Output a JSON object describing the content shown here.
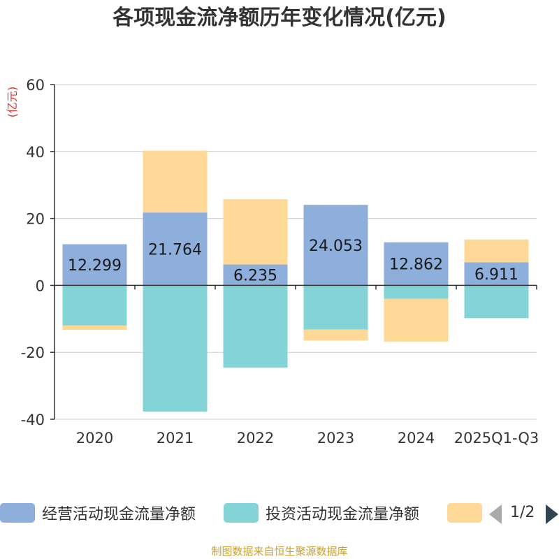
{
  "chart_data": {
    "type": "bar",
    "stacked": true,
    "title": "各项现金流净额历年变化情况(亿元)",
    "ylabel": "(亿元)",
    "ylim": [
      -40,
      60
    ],
    "yticks": [
      60,
      40,
      20,
      0,
      -20,
      -40
    ],
    "grid": true,
    "categories": [
      "2020",
      "2021",
      "2022",
      "2023",
      "2024",
      "2025Q1-Q3"
    ],
    "series": [
      {
        "name": "经营活动现金流量净额",
        "color": "#8eaedc",
        "values": [
          12.299,
          21.764,
          6.235,
          24.053,
          12.862,
          6.911
        ],
        "labels": [
          "12.299",
          "21.764",
          "6.235",
          "24.053",
          "12.862",
          "6.911"
        ]
      },
      {
        "name": "投资活动现金流量净额",
        "color": "#84d3d7",
        "values": [
          -12.0,
          -37.7,
          -24.6,
          -13.2,
          -4.0,
          -9.8
        ]
      },
      {
        "name": "",
        "color": "#fdd897",
        "values": [
          -1.3,
          18.5,
          19.5,
          -3.3,
          -12.8,
          6.8
        ]
      }
    ],
    "legend_position": "bottom"
  },
  "legend": {
    "items": [
      {
        "label": "经营活动现金流量净额",
        "color": "#8eaedc"
      },
      {
        "label": "投资活动现金流量净额",
        "color": "#84d3d7"
      },
      {
        "label": "",
        "color": "#fdd897"
      }
    ],
    "page_text": "1/2"
  },
  "source": "制图数据来自恒生聚源数据库"
}
